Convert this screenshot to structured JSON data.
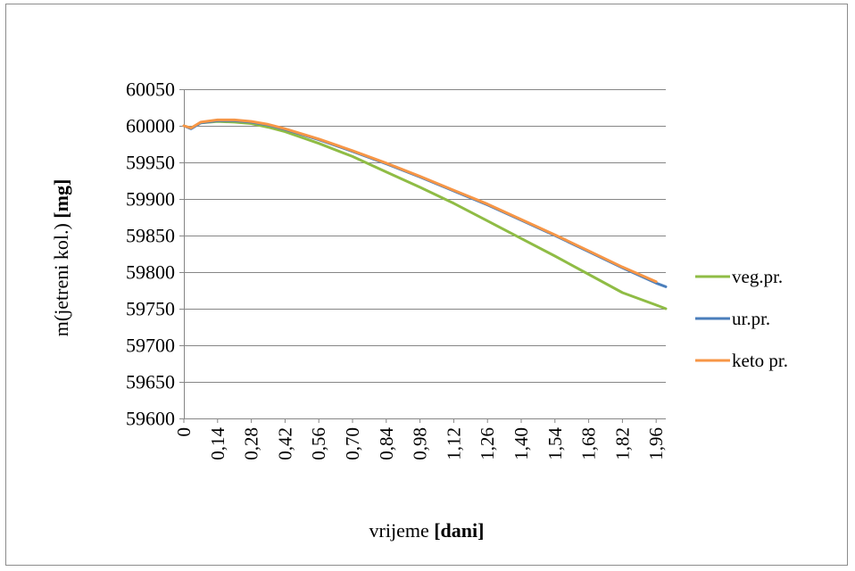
{
  "chart_data": {
    "type": "line",
    "title": "",
    "xlabel": {
      "prefix": "vrijeme ",
      "bold": "[dani]"
    },
    "ylabel": {
      "prefix": "m(jetreni kol.) ",
      "bold": "[mg]"
    },
    "ylim": [
      59600,
      60050
    ],
    "yticks": [
      59600,
      59650,
      59700,
      59750,
      59800,
      59850,
      59900,
      59950,
      60000,
      60050
    ],
    "xlim": [
      0,
      2.0
    ],
    "xtick_values": [
      0,
      0.14,
      0.28,
      0.42,
      0.56,
      0.7,
      0.84,
      0.98,
      1.12,
      1.26,
      1.4,
      1.54,
      1.68,
      1.82,
      1.96
    ],
    "xtick_labels": [
      "0",
      "0,14",
      "0,28",
      "0,42",
      "0,56",
      "0,70",
      "0,84",
      "0,98",
      "1,12",
      "1,26",
      "1,40",
      "1,54",
      "1,68",
      "1,82",
      "1,96"
    ],
    "grid": true,
    "legend_position": "right",
    "series": [
      {
        "name": "veg.pr.",
        "color": "#8fbc45",
        "x": [
          0,
          0.03,
          0.07,
          0.14,
          0.21,
          0.28,
          0.35,
          0.42,
          0.56,
          0.7,
          0.84,
          0.98,
          1.12,
          1.26,
          1.4,
          1.54,
          1.68,
          1.82,
          1.96,
          2.0
        ],
        "y": [
          60000,
          59997,
          60004,
          60006,
          60005,
          60003,
          59998,
          59992,
          59976,
          59958,
          59937,
          59916,
          59894,
          59870,
          59846,
          59822,
          59797,
          59772,
          59755,
          59750
        ]
      },
      {
        "name": "ur.pr.",
        "color": "#4a7ebb",
        "x": [
          0,
          0.03,
          0.07,
          0.14,
          0.21,
          0.28,
          0.35,
          0.42,
          0.56,
          0.7,
          0.84,
          0.98,
          1.12,
          1.26,
          1.4,
          1.54,
          1.68,
          1.82,
          1.96,
          2.0
        ],
        "y": [
          60000,
          59996,
          60004,
          60007,
          60007,
          60005,
          60001,
          59995,
          59981,
          59965,
          59948,
          59930,
          59911,
          59892,
          59871,
          59850,
          59828,
          59806,
          59785,
          59780
        ]
      },
      {
        "name": "keto pr.",
        "color": "#f79646",
        "x": [
          0,
          0.03,
          0.07,
          0.14,
          0.21,
          0.28,
          0.35,
          0.42,
          0.56,
          0.7,
          0.84,
          0.98,
          1.12,
          1.26,
          1.4,
          1.54,
          1.68,
          1.82,
          1.96
        ],
        "y": [
          60000,
          59997,
          60005,
          60008,
          60008,
          60006,
          60002,
          59996,
          59982,
          59966,
          59949,
          59931,
          59912,
          59893,
          59872,
          59851,
          59829,
          59807,
          59787
        ]
      }
    ]
  }
}
